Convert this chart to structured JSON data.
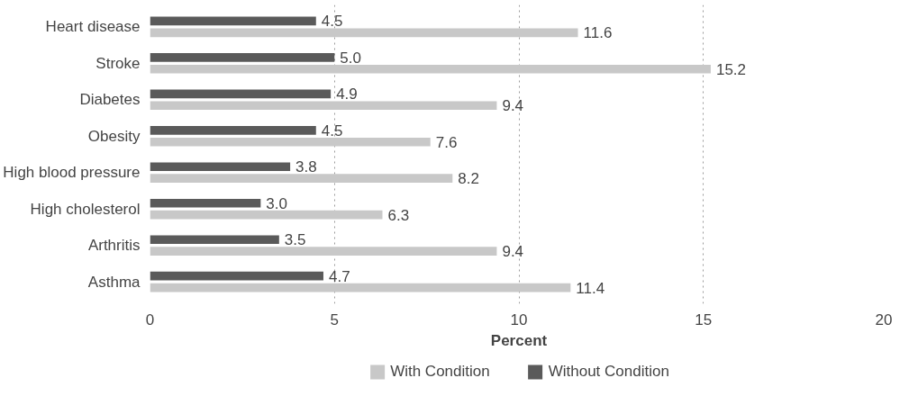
{
  "chart_data": {
    "type": "bar",
    "orientation": "horizontal",
    "xlabel": "Percent",
    "categories": [
      "Heart disease",
      "Stroke",
      "Diabetes",
      "Obesity",
      "High blood pressure",
      "High cholesterol",
      "Arthritis",
      "Asthma"
    ],
    "series": [
      {
        "name": "With Condition",
        "color": "#c8c8c8",
        "values": [
          11.6,
          15.2,
          9.4,
          7.6,
          8.2,
          6.3,
          9.4,
          11.4
        ],
        "value_labels": [
          "11.6",
          "15.2",
          "9.4",
          "7.6",
          "8.2",
          "6.3",
          "9.4",
          "11.4"
        ]
      },
      {
        "name": "Without Condition",
        "color": "#5a5a5a",
        "values": [
          4.5,
          5.0,
          4.9,
          4.5,
          3.8,
          3.0,
          3.5,
          4.7
        ],
        "value_labels": [
          "4.5",
          "5.0",
          "4.9",
          "4.5",
          "3.8",
          "3.0",
          "3.5",
          "4.7"
        ]
      }
    ],
    "xlim": [
      0,
      20
    ],
    "xticks": [
      0,
      5,
      10,
      15,
      20
    ],
    "grid": "x",
    "legend": "bottom"
  }
}
